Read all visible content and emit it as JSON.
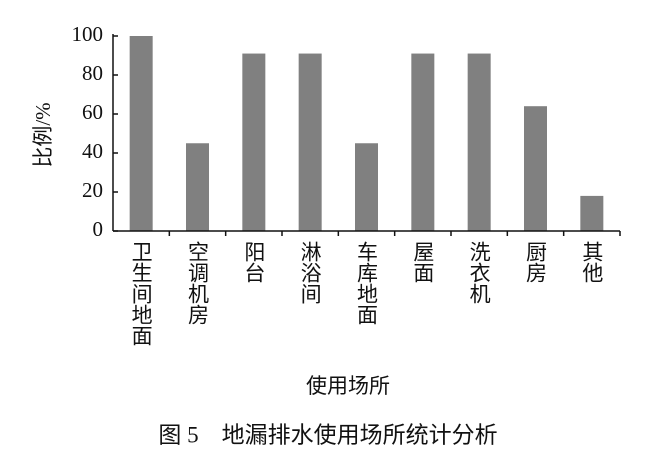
{
  "chart_data": {
    "type": "bar",
    "caption": "图 5　地漏排水使用场所统计分析",
    "x_label": "使用场所",
    "y_label": "比例/%",
    "categories": [
      "卫生间地面",
      "空调机房",
      "阳台",
      "淋浴间",
      "车库地面",
      "屋面",
      "洗衣机",
      "厨房",
      "其他"
    ],
    "values": [
      100,
      45,
      91,
      91,
      45,
      91,
      91,
      64,
      18
    ],
    "color": "#808080",
    "ylim": [
      0,
      100
    ],
    "yticks": [
      0,
      20,
      40,
      60,
      80,
      100
    ],
    "grid": false
  }
}
